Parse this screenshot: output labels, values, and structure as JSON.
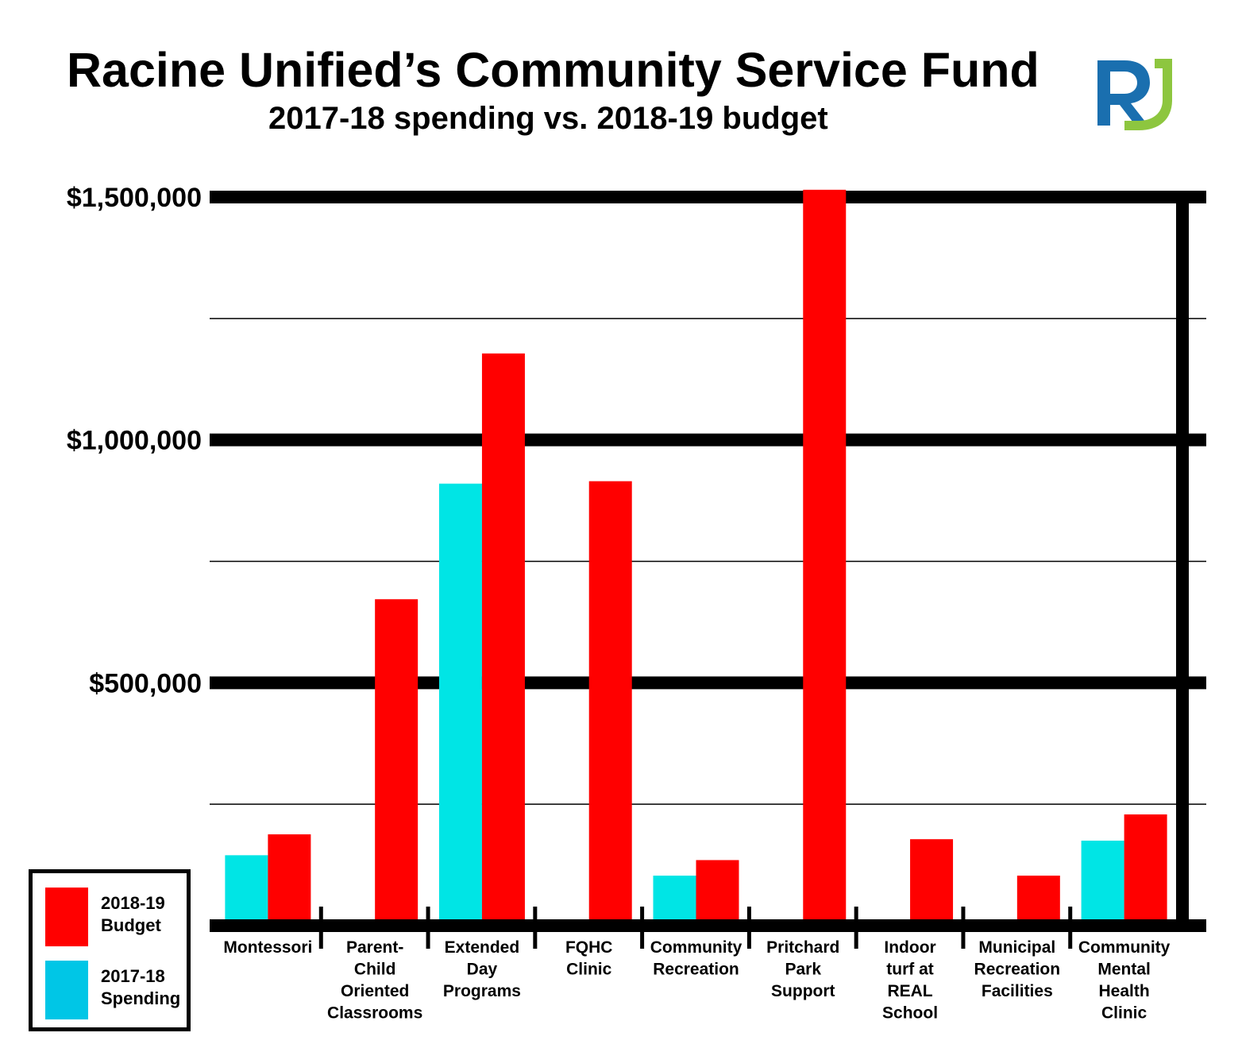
{
  "title": "Racine Unified’s Community Service Fund",
  "subtitle": "2017-18 spending vs. 2018-19 budget",
  "logo": {
    "name": "ru-logo-icon",
    "colors": {
      "blue": "#1a6faf",
      "green": "#8dc63f"
    }
  },
  "legend": {
    "items": [
      {
        "label_line1": "2018-19",
        "label_line2": "Budget",
        "color": "#ff0000"
      },
      {
        "label_line1": "2017-18",
        "label_line2": "Spending",
        "color": "#00c6e6"
      }
    ]
  },
  "chart_data": {
    "type": "bar",
    "title": "Racine Unified’s Community Service Fund",
    "subtitle": "2017-18 spending vs. 2018-19 budget",
    "xlabel": "",
    "ylabel": "",
    "ylim": [
      0,
      1500000
    ],
    "yticks": [
      {
        "value": 500000,
        "label": "$500,000"
      },
      {
        "value": 1000000,
        "label": "$1,000,000"
      },
      {
        "value": 1500000,
        "label": "$1,500,000"
      }
    ],
    "minor_gridlines": [
      250000,
      750000,
      1250000
    ],
    "categories": [
      [
        "Montessori"
      ],
      [
        "Parent-",
        "Child",
        "Oriented",
        "Classrooms"
      ],
      [
        "Extended",
        "Day",
        "Programs"
      ],
      [
        "FQHC",
        "Clinic"
      ],
      [
        "Community",
        "Recreation"
      ],
      [
        "Pritchard",
        "Park",
        "Support"
      ],
      [
        "Indoor",
        "turf at",
        "REAL",
        "School"
      ],
      [
        "Municipal",
        "Recreation",
        "Facilities"
      ],
      [
        "Community",
        "Mental",
        "Health",
        "Clinic"
      ]
    ],
    "series": [
      {
        "name": "2017-18 Spending",
        "color": "#00e5e5",
        "values": [
          145000,
          0,
          910000,
          0,
          103000,
          0,
          0,
          0,
          175000
        ]
      },
      {
        "name": "2018-19 Budget",
        "color": "#ff0000",
        "values": [
          188000,
          672000,
          1178000,
          915000,
          135000,
          1520000,
          178000,
          103000,
          229000
        ]
      }
    ],
    "grid": true,
    "legend_position": "bottom-left"
  }
}
